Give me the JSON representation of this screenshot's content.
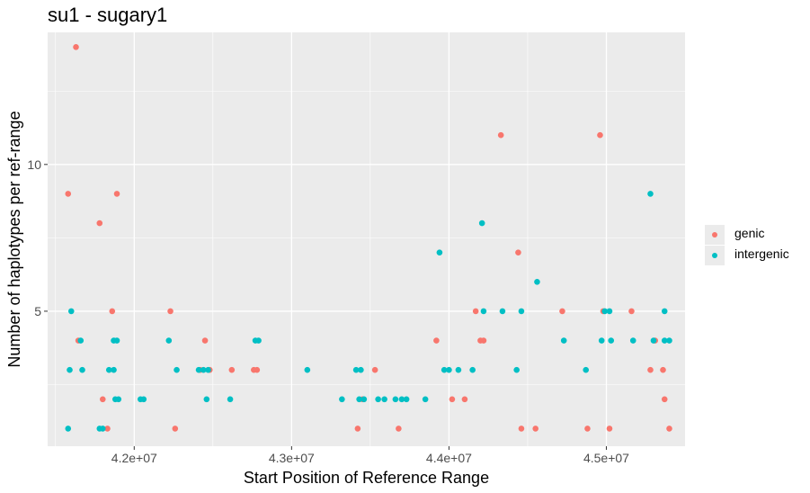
{
  "chart_data": {
    "type": "scatter",
    "title": "su1 - sugary1",
    "xlabel": "Start Position of Reference Range",
    "ylabel": "Number of haplotypes per ref-range",
    "xlim": [
      41450000,
      45500000
    ],
    "ylim": [
      0.4,
      14.5
    ],
    "x_ticks": [
      42000000,
      43000000,
      44000000,
      45000000
    ],
    "x_tick_labels": [
      "4.2e+07",
      "4.3e+07",
      "4.4e+07",
      "4.5e+07"
    ],
    "y_ticks": [
      5,
      10
    ],
    "y_tick_labels": [
      "5",
      "10"
    ],
    "grid": true,
    "legend_position": "right",
    "series": [
      {
        "name": "genic",
        "color": "#F8766D",
        "points": [
          [
            41580000,
            9
          ],
          [
            41630000,
            14
          ],
          [
            41645000,
            4
          ],
          [
            41780000,
            8
          ],
          [
            41800000,
            2
          ],
          [
            41830000,
            1
          ],
          [
            41860000,
            5
          ],
          [
            41890000,
            9
          ],
          [
            42230000,
            5
          ],
          [
            42260000,
            1
          ],
          [
            42420000,
            3
          ],
          [
            42450000,
            4
          ],
          [
            42480000,
            3
          ],
          [
            42620000,
            3
          ],
          [
            42760000,
            3
          ],
          [
            42780000,
            3
          ],
          [
            43420000,
            1
          ],
          [
            43450000,
            2
          ],
          [
            43530000,
            3
          ],
          [
            43680000,
            1
          ],
          [
            43920000,
            4
          ],
          [
            44020000,
            2
          ],
          [
            44100000,
            2
          ],
          [
            44170000,
            5
          ],
          [
            44200000,
            4
          ],
          [
            44220000,
            4
          ],
          [
            44330000,
            11
          ],
          [
            44440000,
            7
          ],
          [
            44460000,
            1
          ],
          [
            44550000,
            1
          ],
          [
            44720000,
            5
          ],
          [
            44880000,
            1
          ],
          [
            44960000,
            11
          ],
          [
            44980000,
            5
          ],
          [
            45020000,
            1
          ],
          [
            45160000,
            5
          ],
          [
            45280000,
            3
          ],
          [
            45310000,
            4
          ],
          [
            45360000,
            3
          ],
          [
            45370000,
            2
          ],
          [
            45400000,
            1
          ]
        ]
      },
      {
        "name": "intergenic",
        "color": "#00BFC4",
        "points": [
          [
            41580000,
            1
          ],
          [
            41590000,
            3
          ],
          [
            41600000,
            5
          ],
          [
            41660000,
            4
          ],
          [
            41670000,
            3
          ],
          [
            41780000,
            1
          ],
          [
            41800000,
            1
          ],
          [
            41840000,
            3
          ],
          [
            41870000,
            3
          ],
          [
            41870000,
            4
          ],
          [
            41880000,
            2
          ],
          [
            41890000,
            4
          ],
          [
            41900000,
            2
          ],
          [
            42040000,
            2
          ],
          [
            42060000,
            2
          ],
          [
            42220000,
            4
          ],
          [
            42270000,
            3
          ],
          [
            42410000,
            3
          ],
          [
            42440000,
            3
          ],
          [
            42460000,
            2
          ],
          [
            42470000,
            3
          ],
          [
            42610000,
            2
          ],
          [
            42770000,
            4
          ],
          [
            42790000,
            4
          ],
          [
            43100000,
            3
          ],
          [
            43320000,
            2
          ],
          [
            43410000,
            3
          ],
          [
            43430000,
            2
          ],
          [
            43440000,
            3
          ],
          [
            43460000,
            2
          ],
          [
            43550000,
            2
          ],
          [
            43590000,
            2
          ],
          [
            43660000,
            2
          ],
          [
            43700000,
            2
          ],
          [
            43730000,
            2
          ],
          [
            43850000,
            2
          ],
          [
            43940000,
            7
          ],
          [
            43970000,
            3
          ],
          [
            44000000,
            3
          ],
          [
            44060000,
            3
          ],
          [
            44150000,
            3
          ],
          [
            44210000,
            8
          ],
          [
            44220000,
            5
          ],
          [
            44340000,
            5
          ],
          [
            44430000,
            3
          ],
          [
            44460000,
            5
          ],
          [
            44560000,
            6
          ],
          [
            44730000,
            4
          ],
          [
            44870000,
            3
          ],
          [
            44970000,
            4
          ],
          [
            44990000,
            5
          ],
          [
            45020000,
            5
          ],
          [
            45030000,
            4
          ],
          [
            45170000,
            4
          ],
          [
            45280000,
            9
          ],
          [
            45300000,
            4
          ],
          [
            45370000,
            4
          ],
          [
            45370000,
            5
          ],
          [
            45400000,
            4
          ]
        ]
      }
    ]
  }
}
